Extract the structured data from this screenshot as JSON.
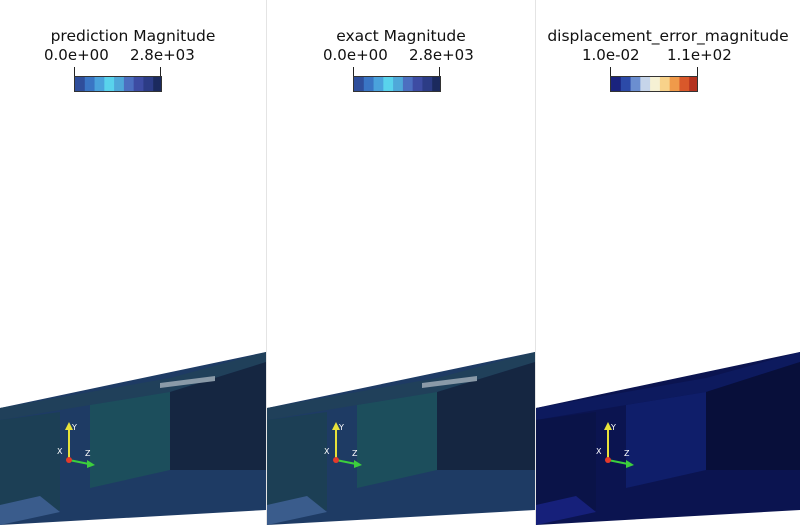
{
  "panels": [
    {
      "legend": {
        "title": "prediction Magnitude",
        "min_label": "0.0e+00",
        "max_label": "2.8e+03",
        "colormap": [
          "#2f4e9b",
          "#3a75c4",
          "#4aa2dc",
          "#59d3ec",
          "#4fa8d9",
          "#4c6fc0",
          "#3d4ca3",
          "#2c3c86",
          "#1b2a5e"
        ]
      },
      "scene_colors": [
        "#1e3b64",
        "#20405a",
        "#1c4e5c",
        "#205c5a",
        "#1c3f55",
        "#152641"
      ]
    },
    {
      "legend": {
        "title": "exact Magnitude",
        "min_label": "0.0e+00",
        "max_label": "2.8e+03",
        "colormap": [
          "#2f4e9b",
          "#3a75c4",
          "#4aa2dc",
          "#59d3ec",
          "#4fa8d9",
          "#4c6fc0",
          "#3d4ca3",
          "#2c3c86",
          "#1b2a5e"
        ]
      },
      "scene_colors": [
        "#1e3b64",
        "#20405a",
        "#1c4e5c",
        "#205c5a",
        "#1c3f55",
        "#152641"
      ]
    },
    {
      "legend": {
        "title": "displacement_error_magnitude",
        "min_label": "1.0e-02",
        "max_label": "1.1e+02",
        "colormap": [
          "#1a237e",
          "#2c4aa8",
          "#6b8ed0",
          "#c6d5ea",
          "#f6f1d4",
          "#f8d28a",
          "#f09a4a",
          "#d9582a",
          "#b4321f"
        ]
      },
      "scene_colors": [
        "#0b1450",
        "#0d1a5e",
        "#0f1e6a",
        "#0c1a5a",
        "#0a1348",
        "#080f3a"
      ]
    }
  ],
  "axes": {
    "x_label": "X",
    "y_label": "Y",
    "z_label": "Z",
    "x_color": "#e53a2b",
    "y_color": "#e8e13a",
    "z_color": "#3ccf3c"
  }
}
